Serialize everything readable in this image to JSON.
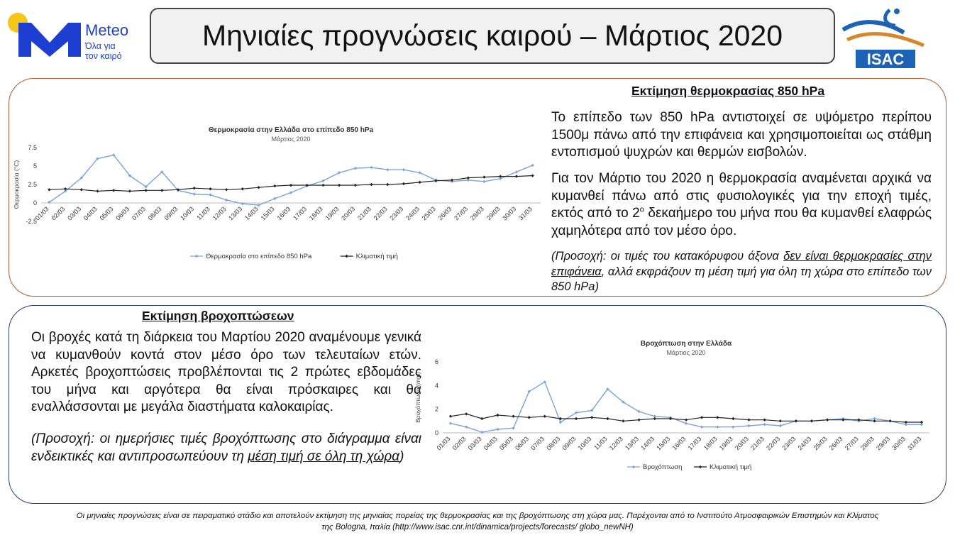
{
  "header": {
    "title": "Μηνιαίες προγνώσεις καιρού – Μάρτιος 2020",
    "meteo_name": "Meteo",
    "meteo_slogan_line1": "Όλα για",
    "meteo_slogan_line2": "τον καιρό",
    "isac_name": "ISAC",
    "colors": {
      "meteo_blue": "#1d3fd1",
      "meteo_yellow": "#f5c518",
      "isac_blue": "#1c63b7",
      "isac_orange": "#d9862a"
    }
  },
  "temperature_section": {
    "heading": "Εκτίμηση θερμοκρασίας 850 hPa",
    "para1": "Το επίπεδο των 850 hPa αντιστοιχεί σε υψόμετρο περίπου 1500μ πάνω από την επιφάνεια και χρησιμοποιείται ως στάθμη εντοπισμού ψυχρών και θερμών εισβολών.",
    "para2_part1": "Για τον Μάρτιο του 2020 η θερμοκρασία αναμένεται αρχικά να κυμανθεί πάνω από στις φυσιολογικές για την εποχή τιμές, εκτός από το 2",
    "para2_sup": "ο",
    "para2_part2": " δεκαήμερο του μήνα που θα κυμανθεί ελαφρώς χαμηλότερα από τον μέσο όρο.",
    "note_part1": "(Προσοχή: οι τιμές του κατακόρυφου άξονα ",
    "note_underlined": "δεν είναι θερμοκρασίες στην επιφάνεια",
    "note_part2": ", αλλά εκφράζουν τη μέση τιμή για όλη τη χώρα στο επίπεδο των 850 hPa)",
    "border_color": "#b8592b"
  },
  "precip_section": {
    "heading": "Εκτίμηση βροχοπτώσεων",
    "para1": "Οι βροχές κατά τη διάρκεια του Μαρτίου 2020 αναμένουμε γενικά να κυμανθούν κοντά στον μέσο όρο των τελευταίων ετών. Αρκετές βροχοπτώσεις προβλέπονται τις 2 πρώτες εβδομάδες του μήνα και αργότερα θα είναι πρόσκαιρες και θα εναλλάσσονται με  μεγάλα διαστήματα καλοκαιρίας.",
    "note_part1": "(Προσοχή: οι ημερήσιες τιμές βροχόπτωσης στο διάγραμμα είναι ενδεικτικές και αντιπροσωπεύουν τη ",
    "note_underlined": "μέση τιμή σε όλη τη χώρα",
    "note_part2": ")",
    "border_color": "#2a3f7a"
  },
  "footer": {
    "line1": "Οι μηνιαίες προγνώσεις είναι σε πειραματικό στάδιο και αποτελούν εκτίμηση της μηνιαίας πορείας της θερμοκρασίας και της βροχόπτωσης στη χώρα μας. Παρέχονται από το Ινστιτούτο Ατμοσφαιρικών Επιστημών και Κλίματος",
    "line2": "της Bologna, Ιταλία (http://www.isac.cnr.int/dinamica/projects/forecasts/ globo_newNH)"
  },
  "chart_data": [
    {
      "id": "temp",
      "type": "line",
      "title": "Θερμοκρασία στην Ελλάδα στο επίπεδο 850 hPa",
      "subtitle": "Μάρτιος 2020",
      "xlabel": "",
      "ylabel": "Θερμοκρασία (°C)",
      "ylim": [
        -2.5,
        7.5
      ],
      "yticks": [
        -2.5,
        0,
        2.5,
        5,
        7.5
      ],
      "ytick_labels": [
        "-2.5",
        "0",
        "2.5",
        "5",
        "7.5"
      ],
      "grid": false,
      "legend_position": "bottom",
      "categories": [
        "01/03",
        "02/03",
        "03/03",
        "04/03",
        "05/03",
        "06/03",
        "07/03",
        "08/03",
        "09/03",
        "10/03",
        "11/03",
        "12/03",
        "13/03",
        "14/03",
        "15/03",
        "16/03",
        "17/03",
        "18/03",
        "19/03",
        "20/03",
        "21/03",
        "22/03",
        "23/03",
        "24/03",
        "25/03",
        "26/03",
        "27/03",
        "28/03",
        "29/03",
        "30/03",
        "31/03"
      ],
      "series": [
        {
          "name": "Θερμοκρασία στο επίπεδο 850 hPa",
          "color": "#7aa3de",
          "marker": "diamond",
          "values": [
            0.1,
            1.6,
            3.4,
            6.0,
            6.5,
            3.7,
            2.2,
            4.2,
            1.7,
            1.2,
            1.1,
            0.4,
            -0.1,
            -0.3,
            0.6,
            1.4,
            2.3,
            3.0,
            4.1,
            4.7,
            4.8,
            4.5,
            4.5,
            4.1,
            3.1,
            2.9,
            3.1,
            2.9,
            3.3,
            4.2,
            5.1
          ]
        },
        {
          "name": "Κλιματική τιμή",
          "color": "#222222",
          "marker": "diamond",
          "values": [
            1.8,
            1.9,
            1.8,
            1.6,
            1.7,
            1.6,
            1.7,
            1.7,
            1.8,
            2.0,
            1.9,
            1.8,
            1.9,
            2.1,
            2.3,
            2.4,
            2.4,
            2.4,
            2.4,
            2.4,
            2.5,
            2.5,
            2.6,
            2.8,
            3.0,
            3.1,
            3.4,
            3.5,
            3.6,
            3.6,
            3.7
          ]
        }
      ]
    },
    {
      "id": "precip",
      "type": "line",
      "title": "Βροχόπτωση στην Ελλάδα",
      "subtitle": "Μάρτιος 2020",
      "xlabel": "",
      "ylabel": "Βροχόπτωση (mm)",
      "ylim": [
        0,
        6
      ],
      "yticks": [
        0,
        2,
        4,
        6
      ],
      "ytick_labels": [
        "0",
        "2",
        "4",
        "6"
      ],
      "grid": false,
      "legend_position": "bottom",
      "categories": [
        "01/03",
        "02/03",
        "03/03",
        "04/03",
        "05/03",
        "06/03",
        "07/03",
        "08/03",
        "09/03",
        "10/03",
        "11/03",
        "12/03",
        "13/03",
        "14/03",
        "15/03",
        "16/03",
        "17/03",
        "18/03",
        "19/03",
        "20/03",
        "21/03",
        "22/03",
        "23/03",
        "24/03",
        "25/03",
        "26/03",
        "27/03",
        "28/03",
        "29/03",
        "30/03",
        "31/03"
      ],
      "series": [
        {
          "name": "Βροχόπτωση",
          "color": "#7aa3de",
          "marker": "diamond",
          "values": [
            0.8,
            0.5,
            0.05,
            0.3,
            0.4,
            3.5,
            4.3,
            0.9,
            1.7,
            1.9,
            3.7,
            2.6,
            1.8,
            1.4,
            1.3,
            0.8,
            0.5,
            0.5,
            0.5,
            0.6,
            0.7,
            0.6,
            1.0,
            1.0,
            1.1,
            1.2,
            1.0,
            1.2,
            1.0,
            0.7,
            0.7
          ]
        },
        {
          "name": "Κλιματική τιμή",
          "color": "#222222",
          "marker": "diamond",
          "values": [
            1.4,
            1.6,
            1.2,
            1.5,
            1.4,
            1.3,
            1.4,
            1.2,
            1.2,
            1.3,
            1.2,
            1.0,
            1.1,
            1.2,
            1.2,
            1.1,
            1.3,
            1.3,
            1.2,
            1.1,
            1.1,
            1.0,
            1.0,
            1.0,
            1.1,
            1.1,
            1.1,
            1.0,
            1.0,
            0.9,
            0.9
          ]
        }
      ]
    }
  ]
}
